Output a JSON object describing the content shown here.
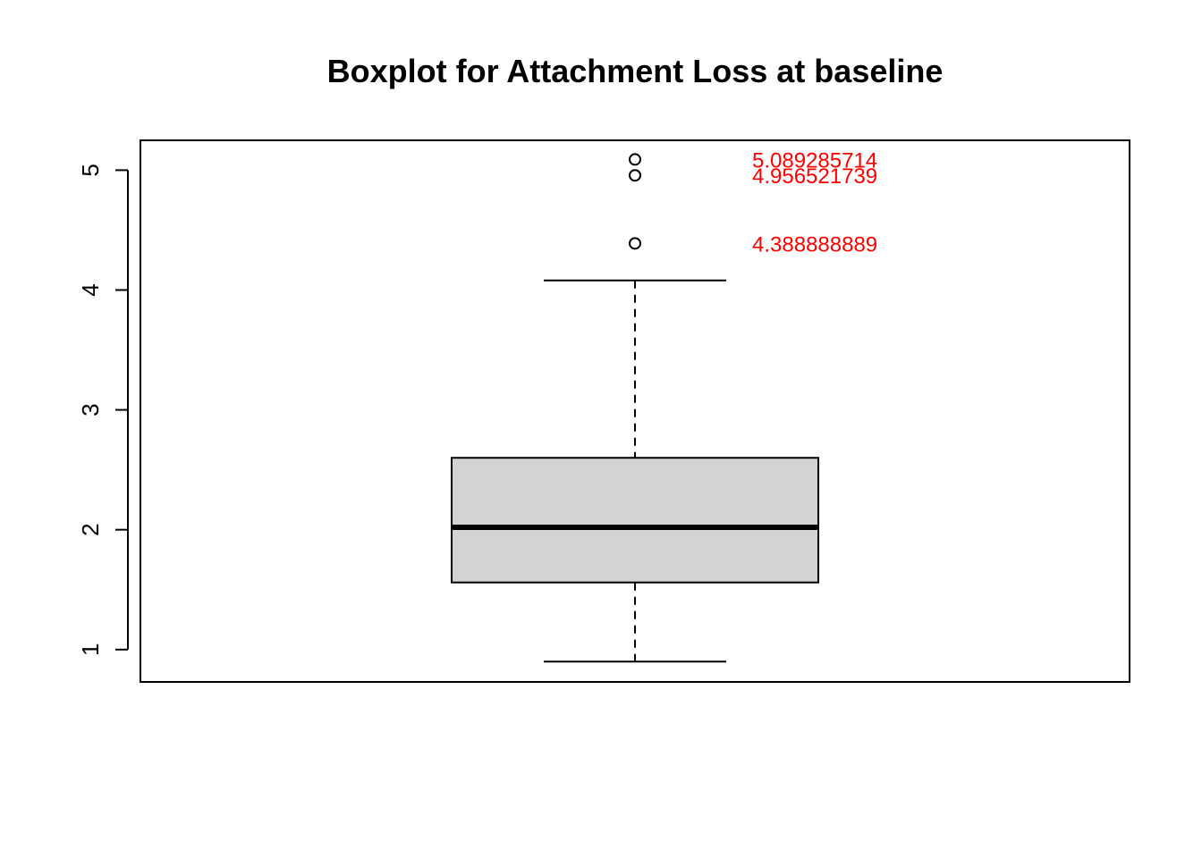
{
  "chart_data": {
    "type": "boxplot",
    "title": "Boxplot for Attachment Loss at baseline",
    "xlabel": "",
    "ylabel": "",
    "ylim": [
      0.73,
      5.25
    ],
    "yticks": [
      1,
      2,
      3,
      4,
      5
    ],
    "ytick_labels": [
      "1",
      "2",
      "3",
      "4",
      "5"
    ],
    "grid": false,
    "box": {
      "whisker_low": 0.9,
      "q1": 1.56,
      "median": 2.02,
      "q3": 2.6,
      "whisker_high": 4.08,
      "fill": "#d3d3d3"
    },
    "outliers": [
      5.089285714,
      4.956521739,
      4.388888889
    ],
    "annotations": [
      {
        "text": "5.089285714",
        "y": 5.089285714
      },
      {
        "text": "4.956521739",
        "y": 4.956521739
      },
      {
        "text": "4.388888889",
        "y": 4.388888889
      }
    ],
    "annotation_color": "#ff0000"
  }
}
